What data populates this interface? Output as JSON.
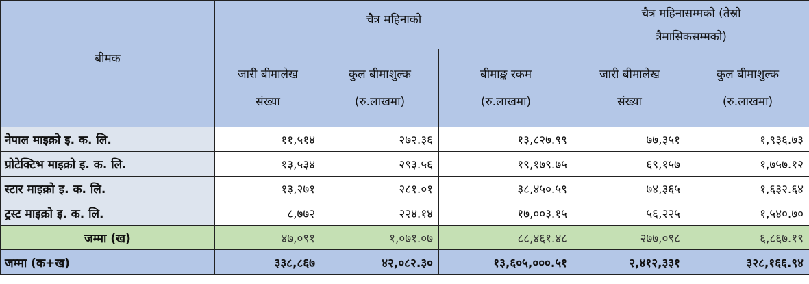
{
  "header": {
    "insurer": "बीमक",
    "group_month": "चैत्र महिनाको",
    "group_cumulative_line1": "चैत्र महिनासम्मको (तेस्रो",
    "group_cumulative_line2": "त्रैमासिकसम्मको)",
    "col_policies_line1": "जारी बीमालेख",
    "col_policies_line2": "संख्या",
    "col_premium_line1": "कुल बीमाशुल्क",
    "col_premium_line2": "(रु.लाखमा)",
    "col_sum_line1": "बीमाङ्क रकम",
    "col_sum_line2": "(रु.लाखमा)",
    "col_cum_policies_line1": "जारी बीमालेख",
    "col_cum_policies_line2": "संख्या",
    "col_cum_premium_line1": "कुल बीमाशुल्क",
    "col_cum_premium_line2": "(रु.लाखमा)"
  },
  "rows": [
    {
      "name": "नेपाल माइक्रो इ. क. लि.",
      "policies": "११,५१४",
      "premium": "२७२.३६",
      "sum": "१३,८२७.९९",
      "cum_policies": "७७,३५१",
      "cum_premium": "१,९३६.७३"
    },
    {
      "name": "प्रोटेक्टिभ माइक्रो इ. क. लि.",
      "policies": "१३,५३४",
      "premium": "२९३.५६",
      "sum": "१९,१७९.७५",
      "cum_policies": "६९,१५७",
      "cum_premium": "१,७५७.१२"
    },
    {
      "name": "स्टार माइक्रो इ. क. लि.",
      "policies": "१३,२७१",
      "premium": "२८१.०१",
      "sum": "३८,४५०.५९",
      "cum_policies": "७४,३६५",
      "cum_premium": "१,६३२.६४"
    },
    {
      "name": "ट्रस्ट माइक्रो इ. क. लि.",
      "policies": "८,७७२",
      "premium": "२२४.१४",
      "sum": "१७,००३.१५",
      "cum_policies": "५६,२२५",
      "cum_premium": "१,५४०.७०"
    }
  ],
  "subtotal": {
    "name": "जम्मा (ख)",
    "policies": "४७,०९१",
    "premium": "१,०७१.०७",
    "sum": "८८,४६१.४८",
    "cum_policies": "२७७,०९८",
    "cum_premium": "६,८६७.१९"
  },
  "total": {
    "name": "जम्मा (क+ख)",
    "policies": "३३८,८६७",
    "premium": "४२,०८२.३०",
    "sum": "१३,६०५,०००.५१",
    "cum_policies": "२,४१२,३३१",
    "cum_premium": "३२८,१६६.९४"
  },
  "colors": {
    "header_bg": "#b4c7e7",
    "name_bg": "#dde4ee",
    "subtotal_bg": "#c5e0b4",
    "total_bg": "#b4c7e7"
  }
}
